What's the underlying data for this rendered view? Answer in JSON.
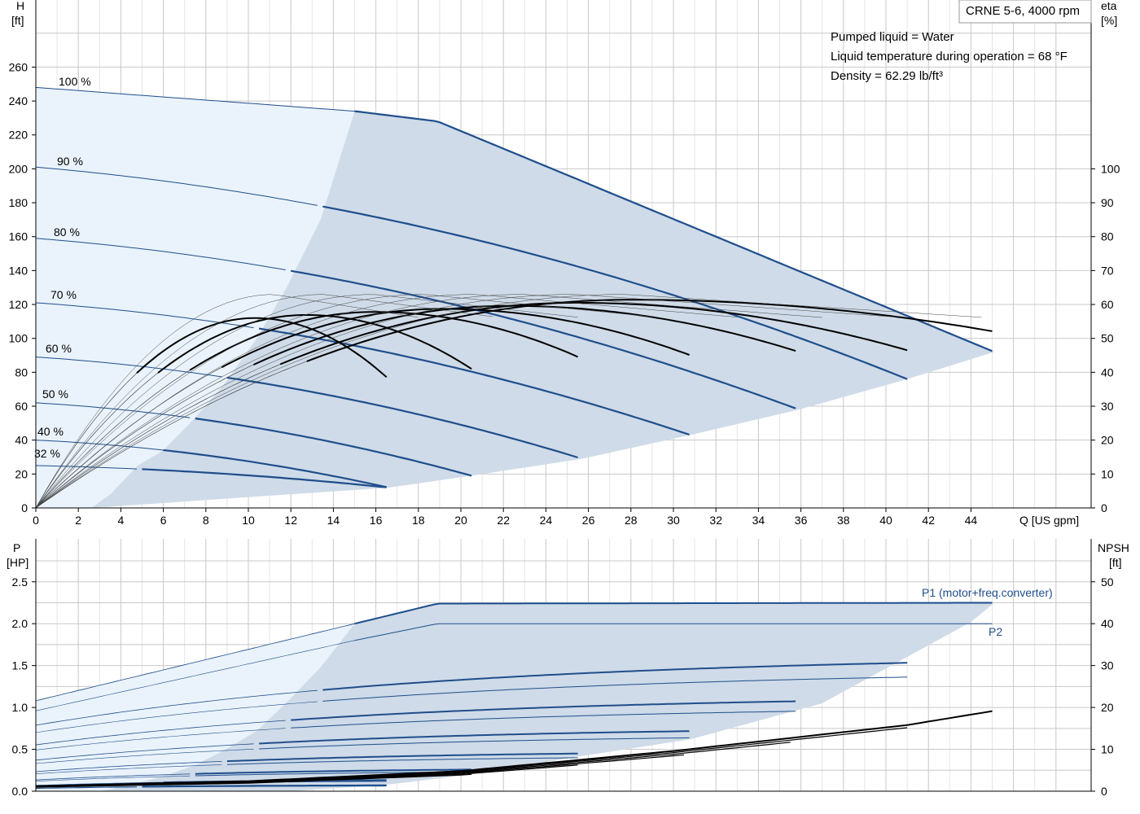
{
  "header": {
    "title": "CRNE 5-6, 4000 rpm",
    "info_lines": [
      "Pumped liquid = Water",
      "Liquid temperature during operation = 68 °F",
      "Density = 62.29 lb/ft³"
    ]
  },
  "colors": {
    "grid": "#c8c8c8",
    "curve": "#1f4e8c",
    "eff_curve": "#000000",
    "region_full": "#cfdbe8",
    "region_light": "#eaf3fc"
  },
  "chart_data": [
    {
      "id": "head",
      "type": "line",
      "x_label": "Q [US gpm]",
      "y_label_top": "H",
      "y_label_unit": "[ft]",
      "y2_label_top": "eta",
      "y2_label_unit": "[%]",
      "xlim": [
        0,
        49
      ],
      "ylim": [
        0,
        280
      ],
      "y2lim": [
        0,
        140
      ],
      "x_ticks": [
        0,
        2,
        4,
        6,
        8,
        10,
        12,
        14,
        16,
        18,
        20,
        22,
        24,
        26,
        28,
        30,
        32,
        34,
        36,
        38,
        40,
        42,
        44
      ],
      "y_ticks": [
        0,
        20,
        40,
        60,
        80,
        100,
        120,
        140,
        160,
        180,
        200,
        220,
        240,
        260
      ],
      "y2_ticks": [
        0,
        10,
        20,
        30,
        40,
        50,
        60,
        70,
        80,
        90,
        100
      ],
      "grid": true,
      "speed_curves": [
        {
          "label": "100 %",
          "qmax": 45.1,
          "h0": 248,
          "hend": 92,
          "light_end": 15,
          "knee": [
            [
              0,
              248
            ],
            [
              15,
              234
            ],
            [
              18.9,
              228
            ],
            [
              45.1,
              92
            ]
          ]
        },
        {
          "label": "90 %",
          "qmax": 41,
          "h0": 201,
          "hend": 76,
          "light_end": 13.4
        },
        {
          "label": "80 %",
          "qmax": 35.9,
          "h0": 159,
          "hend": 58,
          "light_end": 11.8
        },
        {
          "label": "70 %",
          "qmax": 30.8,
          "h0": 121,
          "hend": 43,
          "light_end": 10.4
        },
        {
          "label": "60 %",
          "qmax": 25.7,
          "h0": 89,
          "hend": 29,
          "light_end": 8.8
        },
        {
          "label": "50 %",
          "qmax": 20.5,
          "h0": 62,
          "hend": 19,
          "light_end": 7.4
        },
        {
          "label": "40 %",
          "qmax": 16.6,
          "h0": 40,
          "hend": 12,
          "light_end": 6.0
        },
        {
          "label": "32 %",
          "qmax": 16.6,
          "h0": 25,
          "hend": 12,
          "light_end": 4.8
        }
      ],
      "efficiency_peak_percent": 63,
      "efficiency_curves_qmax": [
        16.6,
        20.5,
        25.7,
        30.8,
        35.9,
        41,
        45.1
      ],
      "efficiency_curves_end_percent": [
        38,
        41,
        44,
        45,
        46,
        46.5,
        52
      ]
    },
    {
      "id": "power",
      "type": "line",
      "x_label": "",
      "y_label_top": "P",
      "y_label_unit": "[HP]",
      "y2_label_top": "NPSH",
      "y2_label_unit": "[ft]",
      "xlim": [
        0,
        49
      ],
      "ylim": [
        0,
        2.75
      ],
      "y2lim": [
        0,
        55
      ],
      "y_ticks": [
        0.0,
        0.5,
        1.0,
        1.5,
        2.0,
        2.5
      ],
      "y_tick_labels": [
        "0.0",
        "0.5",
        "1.0",
        "1.5",
        "2.0",
        "2.5"
      ],
      "y2_ticks": [
        0,
        10,
        20,
        30,
        40,
        50
      ],
      "grid": true,
      "series_labels": {
        "p1": "P1 (motor+freq.converter)",
        "p2": "P2"
      },
      "p1_full": [
        [
          0,
          1.08
        ],
        [
          15,
          2.0
        ],
        [
          18.9,
          2.24
        ],
        [
          45.1,
          2.25
        ]
      ],
      "p2_full": [
        [
          0,
          0.96
        ],
        [
          15,
          1.8
        ],
        [
          18.9,
          2.0
        ],
        [
          45.1,
          2.0
        ]
      ],
      "npsh": [
        [
          0,
          1.2
        ],
        [
          10,
          2.4
        ],
        [
          20,
          4.8
        ],
        [
          30,
          9.6
        ],
        [
          41,
          15.8
        ],
        [
          45.1,
          19.2
        ]
      ]
    }
  ]
}
